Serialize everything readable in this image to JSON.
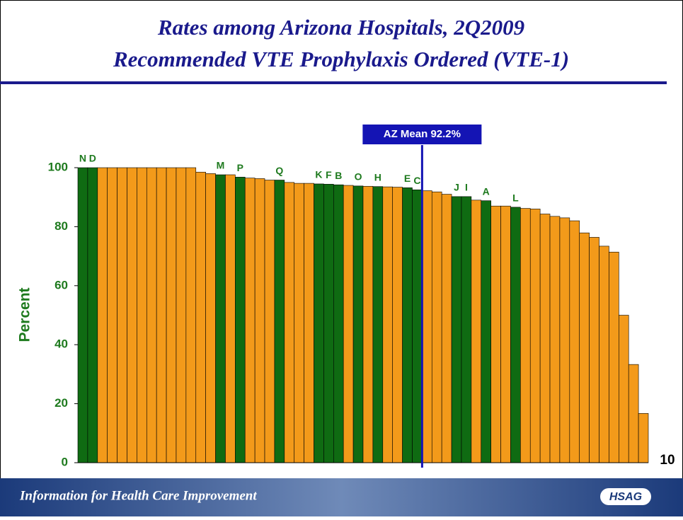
{
  "chart_data": {
    "type": "bar",
    "title": [
      "Rates among Arizona Hospitals, 2Q2009",
      "Recommended VTE Prophylaxis Ordered (VTE-1)"
    ],
    "y_label": "Percent",
    "categories": [
      "N",
      "D",
      null,
      null,
      null,
      null,
      null,
      null,
      null,
      null,
      null,
      null,
      null,
      null,
      "M",
      null,
      "P",
      null,
      null,
      null,
      "Q",
      null,
      null,
      null,
      "K",
      "F",
      "B",
      null,
      "O",
      null,
      "H",
      null,
      null,
      "E",
      "C",
      null,
      null,
      null,
      "J",
      "I",
      null,
      "A",
      null,
      null,
      "L",
      null,
      null,
      null,
      null,
      null,
      null,
      null,
      null,
      null,
      null,
      null,
      null,
      null
    ],
    "values": [
      100,
      100,
      100,
      100,
      100,
      100,
      100,
      100,
      100,
      100,
      100,
      100,
      98.5,
      98,
      97.6,
      97.6,
      96.8,
      96.5,
      96.3,
      95.8,
      95.8,
      95,
      94.7,
      94.7,
      94.5,
      94.4,
      94.2,
      94,
      93.8,
      93.7,
      93.6,
      93.5,
      93.4,
      93.2,
      92.5,
      92.2,
      91.8,
      91,
      90.2,
      90.2,
      89,
      88.8,
      87,
      87,
      86.6,
      86.2,
      86,
      84.3,
      83.5,
      83,
      82,
      77.9,
      76.4,
      73.4,
      71.4,
      50,
      33.3,
      16.7
    ],
    "color": "#f39a1a",
    "highlight_color": "#0f6b12",
    "mean_color": "#1414b4",
    "mean": {
      "value": 92.2,
      "label": "AZ Mean 92.2%"
    },
    "ylim": [
      0,
      100
    ],
    "yticks": [
      0,
      20,
      40,
      60,
      80,
      100
    ]
  },
  "slide_number": "10",
  "footer": {
    "text": "Information for Health Care Improvement",
    "logo": "HSAG"
  }
}
